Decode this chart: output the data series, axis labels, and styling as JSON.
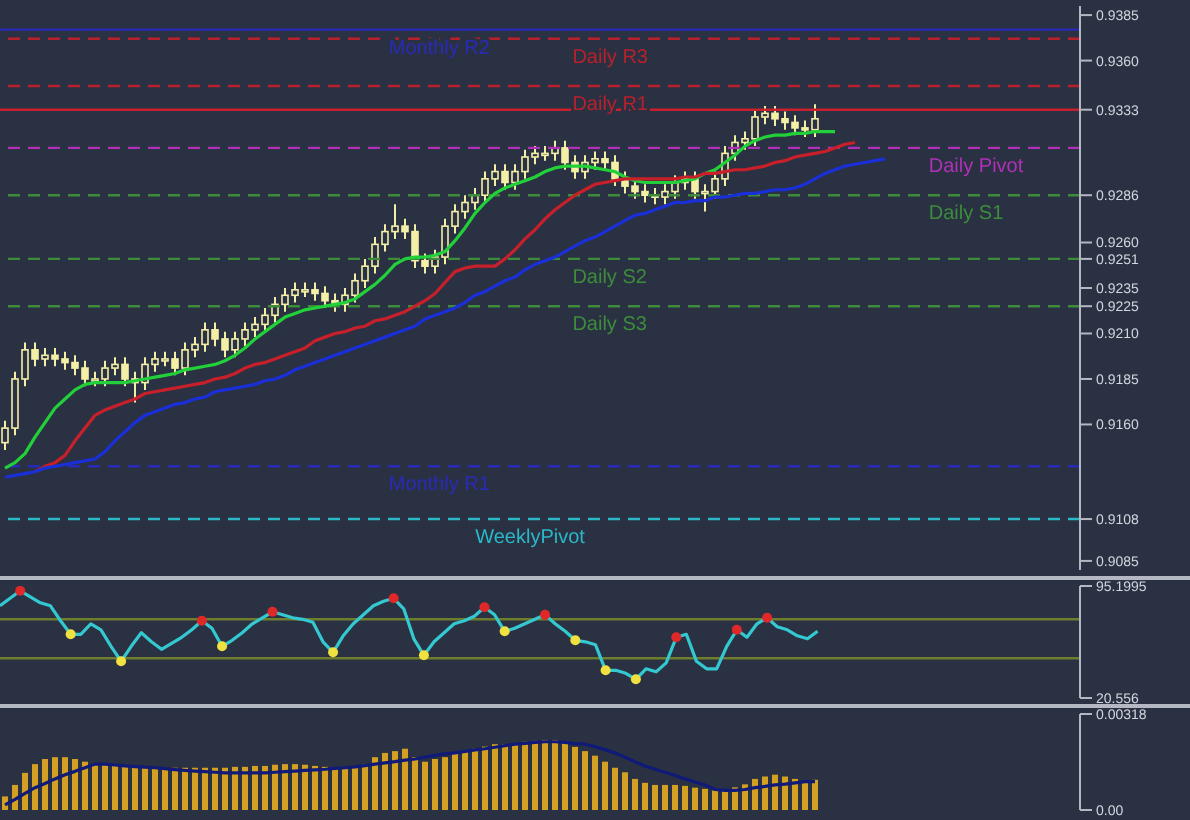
{
  "chart_data": [
    {
      "type": "candlestick",
      "color": "#f4efa6",
      "marker": "none",
      "tick_labels": "y",
      "categories": [
        null,
        null,
        null,
        null,
        null,
        null,
        null,
        null,
        null,
        null,
        null,
        null,
        null,
        null,
        null,
        null,
        null,
        null,
        null,
        null,
        null,
        null,
        null,
        null,
        null,
        null,
        null,
        null,
        null,
        null,
        null,
        null,
        null,
        null,
        null,
        null,
        null,
        null,
        null,
        null,
        null,
        null,
        null,
        null,
        null,
        null,
        null,
        null,
        null,
        null,
        null,
        null,
        null,
        null,
        null,
        null,
        null,
        null,
        null,
        null,
        null,
        null,
        null,
        null,
        null,
        null,
        null,
        null,
        null,
        null,
        null,
        null,
        null,
        null,
        null,
        null,
        null,
        null,
        null,
        null,
        null,
        null,
        null,
        null,
        null,
        null,
        null,
        null,
        null,
        null,
        null,
        null,
        null,
        null,
        null,
        null,
        null,
        null,
        null,
        null,
        null,
        null,
        null,
        null,
        null,
        null,
        null,
        null
      ],
      "ohlc": [
        [
          0.915,
          0.9162,
          0.9146,
          0.9158
        ],
        [
          0.9158,
          0.9189,
          0.9154,
          0.9185
        ],
        [
          0.9185,
          0.9205,
          0.9181,
          0.9201
        ],
        [
          0.9201,
          0.9205,
          0.9192,
          0.9196
        ],
        [
          0.9196,
          0.9202,
          0.9192,
          0.9198
        ],
        [
          0.9198,
          0.9202,
          0.9192,
          0.9196
        ],
        [
          0.9196,
          0.92,
          0.919,
          0.9194
        ],
        [
          0.9194,
          0.9198,
          0.9187,
          0.9191
        ],
        [
          0.9191,
          0.9195,
          0.9181,
          0.9185
        ],
        [
          0.9185,
          0.9189,
          0.9181,
          0.9185
        ],
        [
          0.9185,
          0.9195,
          0.9181,
          0.9191
        ],
        [
          0.9191,
          0.9197,
          0.9187,
          0.9193
        ],
        [
          0.9193,
          0.9197,
          0.9181,
          0.9185
        ],
        [
          0.9185,
          0.9189,
          0.9172,
          0.9183
        ],
        [
          0.9183,
          0.9197,
          0.9179,
          0.9193
        ],
        [
          0.9193,
          0.92,
          0.9189,
          0.9196
        ],
        [
          0.9196,
          0.92,
          0.9192,
          0.9196
        ],
        [
          0.9196,
          0.92,
          0.9187,
          0.9191
        ],
        [
          0.9191,
          0.9205,
          0.9187,
          0.9201
        ],
        [
          0.9201,
          0.9208,
          0.9197,
          0.9204
        ],
        [
          0.9204,
          0.9216,
          0.92,
          0.9212
        ],
        [
          0.9212,
          0.9216,
          0.9203,
          0.9207
        ],
        [
          0.9207,
          0.9211,
          0.9197,
          0.9201
        ],
        [
          0.9201,
          0.9211,
          0.9197,
          0.9207
        ],
        [
          0.9207,
          0.9216,
          0.9203,
          0.9212
        ],
        [
          0.9212,
          0.9219,
          0.9208,
          0.9215
        ],
        [
          0.9215,
          0.9224,
          0.9211,
          0.922
        ],
        [
          0.922,
          0.923,
          0.9216,
          0.9226
        ],
        [
          0.9226,
          0.9235,
          0.9222,
          0.9231
        ],
        [
          0.9231,
          0.9238,
          0.9227,
          0.9234
        ],
        [
          0.9234,
          0.9238,
          0.923,
          0.9234
        ],
        [
          0.9234,
          0.9238,
          0.9228,
          0.9232
        ],
        [
          0.9232,
          0.9236,
          0.9224,
          0.9228
        ],
        [
          0.9228,
          0.9232,
          0.9222,
          0.9226
        ],
        [
          0.9226,
          0.9235,
          0.9222,
          0.9231
        ],
        [
          0.9231,
          0.9243,
          0.9227,
          0.9239
        ],
        [
          0.9239,
          0.9251,
          0.9235,
          0.9247
        ],
        [
          0.9247,
          0.9263,
          0.9243,
          0.9259
        ],
        [
          0.9259,
          0.927,
          0.9255,
          0.9266
        ],
        [
          0.9266,
          0.9281,
          0.9262,
          0.9269
        ],
        [
          0.9269,
          0.9273,
          0.9262,
          0.9266
        ],
        [
          0.9266,
          0.927,
          0.9246,
          0.925
        ],
        [
          0.925,
          0.9254,
          0.9243,
          0.9247
        ],
        [
          0.9247,
          0.9256,
          0.9243,
          0.9252
        ],
        [
          0.9252,
          0.9273,
          0.9248,
          0.9269
        ],
        [
          0.9269,
          0.9281,
          0.9265,
          0.9277
        ],
        [
          0.9277,
          0.9286,
          0.9273,
          0.9282
        ],
        [
          0.9282,
          0.929,
          0.9278,
          0.9286
        ],
        [
          0.9286,
          0.9299,
          0.9282,
          0.9295
        ],
        [
          0.9295,
          0.9303,
          0.9291,
          0.9299
        ],
        [
          0.9299,
          0.9303,
          0.9289,
          0.9293
        ],
        [
          0.9293,
          0.9303,
          0.9289,
          0.9299
        ],
        [
          0.9299,
          0.9311,
          0.9295,
          0.9307
        ],
        [
          0.9307,
          0.9313,
          0.9303,
          0.9309
        ],
        [
          0.9309,
          0.9313,
          0.9305,
          0.9309
        ],
        [
          0.9309,
          0.9316,
          0.9305,
          0.9312
        ],
        [
          0.9312,
          0.9316,
          0.93,
          0.9304
        ],
        [
          0.9304,
          0.9308,
          0.9295,
          0.9299
        ],
        [
          0.9299,
          0.9308,
          0.9295,
          0.9304
        ],
        [
          0.9304,
          0.931,
          0.93,
          0.9306
        ],
        [
          0.9306,
          0.931,
          0.93,
          0.9304
        ],
        [
          0.9304,
          0.9308,
          0.9291,
          0.9295
        ],
        [
          0.9295,
          0.9299,
          0.9287,
          0.9291
        ],
        [
          0.9291,
          0.9295,
          0.9284,
          0.9288
        ],
        [
          0.9288,
          0.9292,
          0.9282,
          0.9286
        ],
        [
          0.9286,
          0.929,
          0.9281,
          0.9285
        ],
        [
          0.9285,
          0.9292,
          0.9281,
          0.9288
        ],
        [
          0.9288,
          0.9297,
          0.9284,
          0.9293
        ],
        [
          0.9293,
          0.9299,
          0.9289,
          0.9295
        ],
        [
          0.9295,
          0.9299,
          0.9284,
          0.9288
        ],
        [
          0.9288,
          0.9292,
          0.9277,
          0.9288
        ],
        [
          0.9288,
          0.9299,
          0.9284,
          0.9295
        ],
        [
          0.9295,
          0.9313,
          0.9291,
          0.9309
        ],
        [
          0.9309,
          0.9319,
          0.9305,
          0.9315
        ],
        [
          0.9315,
          0.9321,
          0.9311,
          0.9317
        ],
        [
          0.9317,
          0.9333,
          0.9313,
          0.9329
        ],
        [
          0.9329,
          0.9335,
          0.9325,
          0.9331
        ],
        [
          0.9331,
          0.9335,
          0.9324,
          0.9328
        ],
        [
          0.9328,
          0.9332,
          0.9322,
          0.9326
        ],
        [
          0.9326,
          0.933,
          0.9319,
          0.9323
        ],
        [
          0.9323,
          0.9327,
          0.9318,
          0.9322
        ],
        [
          0.9322,
          0.9336,
          0.9318,
          0.9328
        ],
        null,
        null,
        null,
        null,
        null,
        null,
        null,
        null,
        null,
        null,
        null,
        null,
        null,
        null,
        null,
        null,
        null,
        null,
        null,
        null,
        null,
        null,
        null,
        null,
        null,
        null
      ],
      "series": [
        {
          "type": "line",
          "color": "#22d03a",
          "values": [
            0.9136,
            0.9139,
            0.9144,
            0.9153,
            0.9161,
            0.9169,
            0.9174,
            0.9179,
            0.9182,
            0.9183,
            0.9183,
            0.9183,
            0.9183,
            0.9184,
            0.9185,
            0.9186,
            0.9187,
            0.9188,
            0.919,
            0.9191,
            0.9192,
            0.9193,
            0.9195,
            0.9198,
            0.9202,
            0.9207,
            0.9211,
            0.9215,
            0.9219,
            0.9221,
            0.9223,
            0.9224,
            0.9225,
            0.9226,
            0.9227,
            0.9229,
            0.9233,
            0.9237,
            0.9242,
            0.9248,
            0.9251,
            0.9252,
            0.9252,
            0.9253,
            0.9255,
            0.9261,
            0.9268,
            0.9276,
            0.9282,
            0.9287,
            0.929,
            0.9292,
            0.9294,
            0.9296,
            0.9299,
            0.9301,
            0.9302,
            0.9302,
            0.9302,
            0.9301,
            0.93,
            0.9299,
            0.9296,
            0.9294,
            0.9293,
            0.9293,
            0.9293,
            0.9293,
            0.9294,
            0.9295,
            0.9298,
            0.93,
            0.9304,
            0.9308,
            0.9313,
            0.9316,
            0.9318,
            0.9319,
            0.9319,
            0.932,
            0.932,
            0.9321,
            0.9321,
            0.9321,
            null,
            null,
            null,
            null,
            null,
            null,
            null,
            null,
            null,
            null,
            null,
            null,
            null,
            null,
            null,
            null,
            null,
            null,
            null,
            null,
            null,
            null,
            null,
            null
          ]
        },
        {
          "type": "line",
          "color": "#c8202a",
          "values": [
            null,
            null,
            null,
            0.9134,
            0.9137,
            0.9139,
            0.9143,
            0.9151,
            0.9158,
            0.9165,
            0.9168,
            0.917,
            0.9172,
            0.9174,
            0.9177,
            0.9178,
            0.9179,
            0.918,
            0.9181,
            0.9182,
            0.9183,
            0.9185,
            0.9186,
            0.9188,
            0.9191,
            0.9193,
            0.9194,
            0.9196,
            0.9198,
            0.92,
            0.9202,
            0.9206,
            0.9208,
            0.921,
            0.9211,
            0.9213,
            0.9214,
            0.9217,
            0.9218,
            0.922,
            0.9222,
            0.9225,
            0.9228,
            0.9232,
            0.9238,
            0.9244,
            0.9246,
            0.9247,
            0.9247,
            0.9247,
            0.9251,
            0.9256,
            0.9262,
            0.9267,
            0.9273,
            0.9278,
            0.9282,
            0.9286,
            0.9289,
            0.9292,
            0.9293,
            0.9294,
            0.9295,
            0.9295,
            0.9295,
            0.9295,
            0.9295,
            0.9295,
            0.9296,
            0.9296,
            0.9298,
            0.9298,
            0.9299,
            0.93,
            0.93,
            0.9301,
            0.9302,
            0.9304,
            0.9305,
            0.9307,
            0.9308,
            0.9309,
            0.931,
            0.9312,
            0.9314,
            0.9315,
            null,
            null,
            null,
            null,
            null,
            null,
            null,
            null,
            null,
            null,
            null,
            null,
            null,
            null,
            null,
            null,
            null,
            null,
            null,
            null,
            null,
            null
          ]
        },
        {
          "type": "line",
          "color": "#1a2fd8",
          "values": [
            0.9131,
            0.9132,
            0.9133,
            0.9134,
            0.9136,
            0.9137,
            0.9138,
            0.9139,
            0.914,
            0.9141,
            0.9145,
            0.9151,
            0.9156,
            0.9161,
            0.9165,
            0.9167,
            0.9169,
            0.9171,
            0.9172,
            0.9174,
            0.9175,
            0.9178,
            0.9179,
            0.918,
            0.9181,
            0.9182,
            0.9184,
            0.9185,
            0.9187,
            0.919,
            0.9192,
            0.9194,
            0.9196,
            0.9198,
            0.92,
            0.9202,
            0.9204,
            0.9206,
            0.9208,
            0.921,
            0.9212,
            0.9214,
            0.9218,
            0.922,
            0.9222,
            0.9224,
            0.9227,
            0.9231,
            0.9233,
            0.9236,
            0.9239,
            0.9241,
            0.9245,
            0.9248,
            0.925,
            0.9252,
            0.9255,
            0.9258,
            0.9261,
            0.9263,
            0.9266,
            0.9269,
            0.9272,
            0.9275,
            0.9276,
            0.9278,
            0.928,
            0.9282,
            0.9282,
            0.9283,
            0.9283,
            0.9285,
            0.9285,
            0.9286,
            0.9287,
            0.9287,
            0.9288,
            0.9289,
            0.9289,
            0.929,
            0.9292,
            0.9295,
            0.9298,
            0.93,
            0.9302,
            0.9303,
            0.9304,
            0.9305,
            0.9306,
            null,
            null,
            null,
            null,
            null,
            null,
            null,
            null,
            null,
            null,
            null,
            null,
            null,
            null,
            null,
            null,
            null,
            null,
            null
          ]
        }
      ],
      "ylim": [
        0.908,
        0.939
      ],
      "yticks": [
        0.9385,
        {
          "value": 0.936,
          "label": "0.9360"
        },
        0.9333,
        0.9286,
        {
          "value": 0.926,
          "label": "0.9260"
        },
        0.9251,
        0.9235,
        0.9225,
        {
          "value": 0.921,
          "label": "0.9210"
        },
        0.9185,
        {
          "value": 0.916,
          "label": "0.9160"
        },
        0.9108,
        0.9085
      ],
      "ref_lines": [
        {
          "axis": "y",
          "value": 0.9377,
          "label": "Monthly R2",
          "color": "#2a2ab8",
          "line_style": "solid"
        },
        {
          "axis": "y",
          "value": 0.9372,
          "label": "Daily R3",
          "color": "#b8202c",
          "line_style": "dashed"
        },
        {
          "axis": "y",
          "value": 0.9346,
          "label": "Daily R1",
          "color": "#b8202c",
          "line_style": "dashed"
        },
        {
          "axis": "y",
          "value": 0.9333,
          "label": null,
          "color": "#c8202c",
          "line_style": "solid"
        },
        {
          "axis": "y",
          "value": 0.9312,
          "label": "Daily Pivot",
          "color": "#b030b8",
          "line_style": "dashed"
        },
        {
          "axis": "y",
          "value": 0.9286,
          "label": "Daily S1",
          "color": "#3c8c3c",
          "line_style": "dashed"
        },
        {
          "axis": "y",
          "value": 0.9251,
          "label": "Daily S2",
          "color": "#3c8c3c",
          "line_style": "dashed"
        },
        {
          "axis": "y",
          "value": 0.9225,
          "label": "Daily S3",
          "color": "#3c8c3c",
          "line_style": "dashed"
        },
        {
          "axis": "y",
          "value": 0.9137,
          "label": "Monthly R1",
          "color": "#2a2ab8",
          "line_style": "dashed"
        },
        {
          "axis": "y",
          "value": 0.9108,
          "label": "WeeklyPivot",
          "color": "#2ab8c8",
          "line_style": "dashed"
        }
      ]
    },
    {
      "type": "line",
      "marker": "none",
      "tick_labels": "y",
      "categories": [
        null,
        null,
        null,
        null,
        null,
        null,
        null,
        null,
        null,
        null,
        null,
        null,
        null,
        null,
        null,
        null,
        null,
        null,
        null,
        null,
        null,
        null,
        null,
        null,
        null,
        null,
        null,
        null,
        null,
        null,
        null,
        null,
        null,
        null,
        null,
        null,
        null,
        null,
        null,
        null,
        null,
        null,
        null,
        null,
        null,
        null,
        null,
        null,
        null,
        null,
        null,
        null,
        null,
        null,
        null,
        null,
        null,
        null,
        null,
        null,
        null,
        null,
        null,
        null,
        null,
        null,
        null,
        null,
        null,
        null,
        null,
        null,
        null,
        null,
        null,
        null,
        null,
        null,
        null,
        null,
        null,
        null,
        null,
        null,
        null,
        null,
        null,
        null,
        null,
        null,
        null,
        null,
        null,
        null,
        null,
        null,
        null,
        null,
        null,
        null,
        null,
        null,
        null,
        null,
        null,
        null,
        null,
        null
      ],
      "series": [
        {
          "color": "#34c8d0",
          "values": [
            82,
            87,
            92,
            88,
            84,
            82,
            72,
            63,
            63,
            70,
            66,
            55,
            45,
            55,
            64,
            58,
            53,
            57,
            61,
            66,
            72,
            67,
            55,
            59,
            64,
            70,
            74,
            78,
            76,
            74,
            73,
            71,
            58,
            51,
            62,
            70,
            76,
            82,
            85,
            87,
            80,
            60,
            49,
            58,
            64,
            70,
            72,
            75,
            81,
            76,
            65,
            67,
            70,
            73,
            76,
            70,
            65,
            59,
            58,
            56,
            39,
            39,
            37,
            33,
            40,
            38,
            44,
            61,
            63,
            45,
            40,
            40,
            55,
            66,
            61,
            70,
            74,
            68,
            66,
            62,
            60,
            65,
            null,
            null,
            null,
            null,
            null,
            null,
            null,
            null,
            null,
            null,
            null,
            null,
            null,
            null,
            null,
            null,
            null,
            null,
            null,
            null,
            null,
            null,
            null,
            null,
            null,
            null
          ]
        },
        {
          "type": "scatter",
          "marker": "circle",
          "color": "#e02828",
          "values": [
            null,
            null,
            92,
            null,
            null,
            null,
            null,
            null,
            null,
            null,
            null,
            null,
            null,
            null,
            null,
            null,
            null,
            null,
            null,
            null,
            72,
            null,
            null,
            null,
            null,
            null,
            null,
            78,
            null,
            null,
            null,
            null,
            null,
            null,
            null,
            null,
            null,
            null,
            null,
            87,
            null,
            null,
            null,
            null,
            null,
            null,
            null,
            null,
            81,
            null,
            null,
            null,
            null,
            null,
            76,
            null,
            null,
            null,
            null,
            null,
            null,
            null,
            null,
            null,
            null,
            null,
            null,
            61,
            null,
            null,
            null,
            null,
            null,
            66,
            null,
            null,
            74,
            null,
            null,
            null,
            null,
            null,
            null,
            null,
            null,
            null,
            null,
            null,
            null,
            null,
            null,
            null,
            null,
            null,
            null,
            null,
            null,
            null,
            null,
            null,
            null,
            null,
            null,
            null,
            null,
            null,
            null,
            null
          ]
        },
        {
          "type": "scatter",
          "marker": "circle",
          "color": "#f0e040",
          "values": [
            null,
            null,
            null,
            null,
            null,
            null,
            null,
            63,
            null,
            null,
            null,
            null,
            45,
            null,
            null,
            null,
            null,
            null,
            null,
            null,
            null,
            null,
            55,
            null,
            null,
            null,
            null,
            null,
            null,
            null,
            null,
            null,
            null,
            51,
            null,
            null,
            null,
            null,
            null,
            null,
            null,
            null,
            49,
            null,
            null,
            null,
            null,
            null,
            null,
            null,
            65,
            null,
            null,
            null,
            null,
            null,
            null,
            59,
            null,
            null,
            39,
            null,
            null,
            33,
            null,
            null,
            null,
            null,
            null,
            null,
            null,
            null,
            null,
            null,
            null,
            null,
            null,
            null,
            null,
            null,
            null,
            null,
            null,
            null,
            null,
            null,
            null,
            null,
            null,
            null,
            null,
            null,
            null,
            null,
            null,
            null,
            null,
            null,
            null,
            null,
            null,
            null,
            null,
            null,
            null,
            null,
            null,
            null
          ]
        }
      ],
      "ylim": [
        20.556,
        95.1995
      ],
      "yticks": [
        95.1995,
        20.556
      ],
      "ref_lines": [
        {
          "axis": "y",
          "value": 73,
          "color": "#6e7e2c",
          "line_style": "solid"
        },
        {
          "axis": "y",
          "value": 47,
          "color": "#6e7e2c",
          "line_style": "solid"
        }
      ]
    },
    {
      "type": "bar",
      "marker": "none",
      "tick_labels": "y",
      "categories": [
        null,
        null,
        null,
        null,
        null,
        null,
        null,
        null,
        null,
        null,
        null,
        null,
        null,
        null,
        null,
        null,
        null,
        null,
        null,
        null,
        null,
        null,
        null,
        null,
        null,
        null,
        null,
        null,
        null,
        null,
        null,
        null,
        null,
        null,
        null,
        null,
        null,
        null,
        null,
        null,
        null,
        null,
        null,
        null,
        null,
        null,
        null,
        null,
        null,
        null,
        null,
        null,
        null,
        null,
        null,
        null,
        null,
        null,
        null,
        null,
        null,
        null,
        null,
        null,
        null,
        null,
        null,
        null,
        null,
        null,
        null,
        null,
        null,
        null,
        null,
        null,
        null,
        null,
        null,
        null,
        null,
        null,
        null,
        null,
        null,
        null,
        null,
        null,
        null,
        null,
        null,
        null,
        null,
        null,
        null,
        null,
        null,
        null,
        null,
        null,
        null,
        null,
        null,
        null,
        null,
        null,
        null,
        null
      ],
      "series": [
        {
          "color": "#d4a024",
          "values": [
            0.00045,
            0.00083,
            0.00123,
            0.00152,
            0.00169,
            0.00175,
            0.00175,
            0.00169,
            0.0016,
            0.00155,
            0.0015,
            0.00146,
            0.00146,
            0.00143,
            0.0014,
            0.0014,
            0.0014,
            0.0014,
            0.0014,
            0.0014,
            0.0014,
            0.0014,
            0.0014,
            0.00143,
            0.00143,
            0.00146,
            0.00146,
            0.0015,
            0.00152,
            0.00152,
            0.0015,
            0.00146,
            0.00143,
            0.0014,
            0.0014,
            0.00143,
            0.0015,
            0.00175,
            0.00189,
            0.00195,
            0.00203,
            0.00175,
            0.0016,
            0.00169,
            0.00175,
            0.00189,
            0.00195,
            0.00203,
            0.0021,
            0.00218,
            0.00218,
            0.00222,
            0.00226,
            0.00229,
            0.00232,
            0.00232,
            0.00226,
            0.00209,
            0.00195,
            0.0018,
            0.0016,
            0.0014,
            0.00125,
            0.00103,
            0.0009,
            0.00083,
            0.00083,
            0.00083,
            0.0008,
            0.00074,
            0.0007,
            0.00065,
            0.00065,
            0.00075,
            0.00085,
            0.00103,
            0.00111,
            0.00117,
            0.00111,
            0.00103,
            0.00094,
            0.001,
            null,
            null,
            null,
            null,
            null,
            null,
            null,
            null,
            null,
            null,
            null,
            null,
            null,
            null,
            null,
            null,
            null,
            null,
            null,
            null,
            null,
            null,
            null,
            null,
            null,
            null
          ]
        },
        {
          "type": "line",
          "color": "#101a78",
          "values": [
            0.00017,
            0.00035,
            0.00055,
            0.00074,
            0.00088,
            0.00103,
            0.00117,
            0.00128,
            0.0014,
            0.00152,
            0.00152,
            0.00149,
            0.00146,
            0.00144,
            0.00142,
            0.0014,
            0.00137,
            0.00134,
            0.00131,
            0.00129,
            0.00127,
            0.00125,
            0.00123,
            0.00123,
            0.00123,
            0.00123,
            0.00123,
            0.00125,
            0.00127,
            0.00129,
            0.00131,
            0.00133,
            0.00135,
            0.00138,
            0.0014,
            0.00143,
            0.00147,
            0.00152,
            0.00156,
            0.0016,
            0.00165,
            0.00169,
            0.00175,
            0.00181,
            0.00186,
            0.00189,
            0.00194,
            0.00199,
            0.00203,
            0.00208,
            0.00213,
            0.00218,
            0.00221,
            0.00224,
            0.00226,
            0.00226,
            0.00224,
            0.0022,
            0.00218,
            0.0021,
            0.002,
            0.00189,
            0.00175,
            0.0016,
            0.00146,
            0.00135,
            0.00125,
            0.00115,
            0.00103,
            0.00093,
            0.00083,
            0.00068,
            0.00065,
            0.00065,
            0.00068,
            0.00074,
            0.00078,
            0.00083,
            0.00086,
            0.0009,
            0.00094,
            0.00094,
            null,
            null,
            null,
            null,
            null,
            null,
            null,
            null,
            null,
            null,
            null,
            null,
            null,
            null,
            null,
            null,
            null,
            null,
            null,
            null,
            null,
            null,
            null,
            null,
            null,
            null
          ]
        }
      ],
      "ylim": [
        0,
        0.00318
      ],
      "yticks": [
        0.00318,
        {
          "value": 0,
          "label": "0.00"
        }
      ]
    }
  ]
}
